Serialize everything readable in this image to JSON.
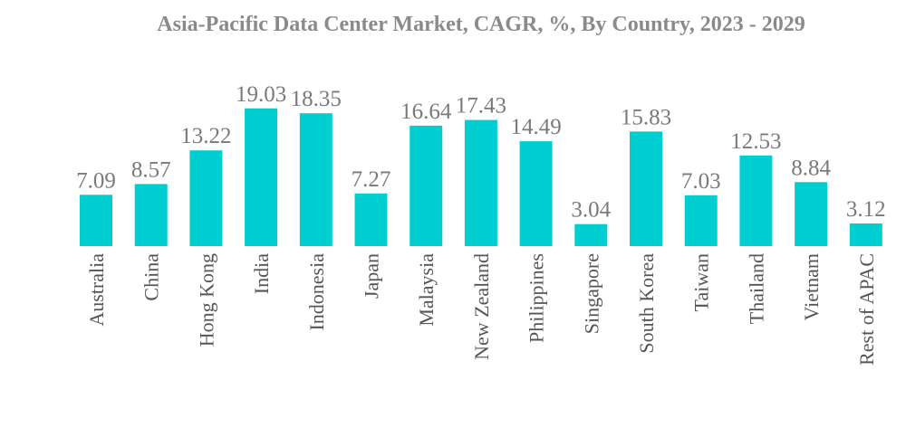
{
  "chart_data": {
    "type": "bar",
    "title": "Asia-Pacific Data Center Market, CAGR, %, By Country, 2023 - 2029",
    "xlabel": "",
    "ylabel": "",
    "ylim": [
      0,
      20
    ],
    "grid": false,
    "bar_color": "#00CED1",
    "categories": [
      "Australia",
      "China",
      "Hong Kong",
      "India",
      "Indonesia",
      "Japan",
      "Malaysia",
      "New Zealand",
      "Philippines",
      "Singapore",
      "South Korea",
      "Taiwan",
      "Thailand",
      "Vietnam",
      "Rest of APAC"
    ],
    "values": [
      7.09,
      8.57,
      13.22,
      19.03,
      18.35,
      7.27,
      16.64,
      17.43,
      14.49,
      3.04,
      15.83,
      7.03,
      12.53,
      8.84,
      3.12
    ],
    "value_labels": [
      "7.09",
      "8.57",
      "13.22",
      "19.03",
      "18.35",
      "7.27",
      "16.64",
      "17.43",
      "14.49",
      "3.04",
      "15.83",
      "7.03",
      "12.53",
      "8.84",
      "3.12"
    ]
  }
}
